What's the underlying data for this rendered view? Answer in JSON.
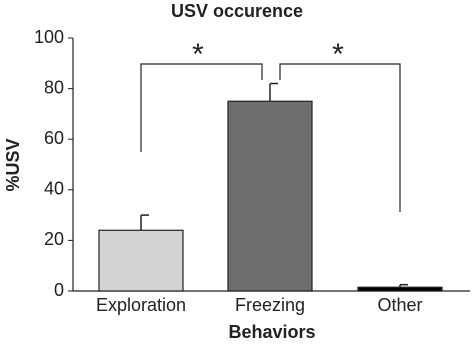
{
  "chart_data": {
    "type": "bar",
    "title": "USV occurence",
    "xlabel": "Behaviors",
    "ylabel": "%USV",
    "categories": [
      "Exploration",
      "Freezing",
      "Other"
    ],
    "values": [
      24,
      75,
      1.5
    ],
    "errors": [
      6,
      7,
      1
    ],
    "colors": [
      "#d3d3d3",
      "#6e6e6e",
      "#000000"
    ],
    "ylim": [
      0,
      100
    ],
    "yticks": [
      0,
      20,
      40,
      60,
      80,
      100
    ],
    "annotations": [
      "*",
      "*"
    ]
  }
}
